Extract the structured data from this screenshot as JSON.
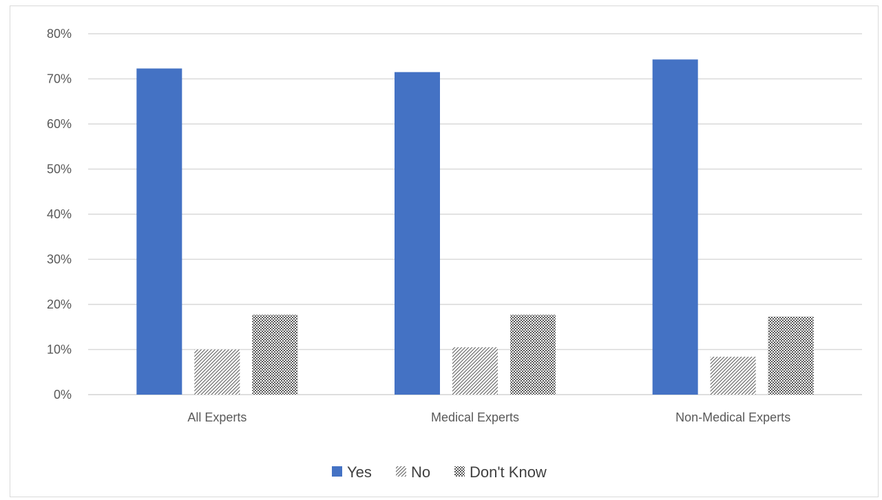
{
  "chart_data": {
    "type": "bar",
    "title": "",
    "xlabel": "",
    "ylabel": "",
    "categories": [
      "All Experts",
      "Medical Experts",
      "Non-Medical Experts"
    ],
    "series": [
      {
        "name": "Yes",
        "values": [
          72.3,
          71.5,
          74.3
        ],
        "color": "#4472c4",
        "pattern": "solid"
      },
      {
        "name": "No",
        "values": [
          10.0,
          10.5,
          8.4
        ],
        "color": "#7f7f7f",
        "pattern": "diagonal"
      },
      {
        "name": "Don't Know",
        "values": [
          17.7,
          17.7,
          17.3
        ],
        "color": "#7f7f7f",
        "pattern": "dots"
      }
    ],
    "ylim": [
      0,
      80
    ],
    "yticks": [
      0,
      10,
      20,
      30,
      40,
      50,
      60,
      70,
      80
    ],
    "ytick_labels": [
      "0%",
      "10%",
      "20%",
      "30%",
      "40%",
      "50%",
      "60%",
      "70%",
      "80%"
    ],
    "grid": true,
    "legend_position": "bottom"
  }
}
